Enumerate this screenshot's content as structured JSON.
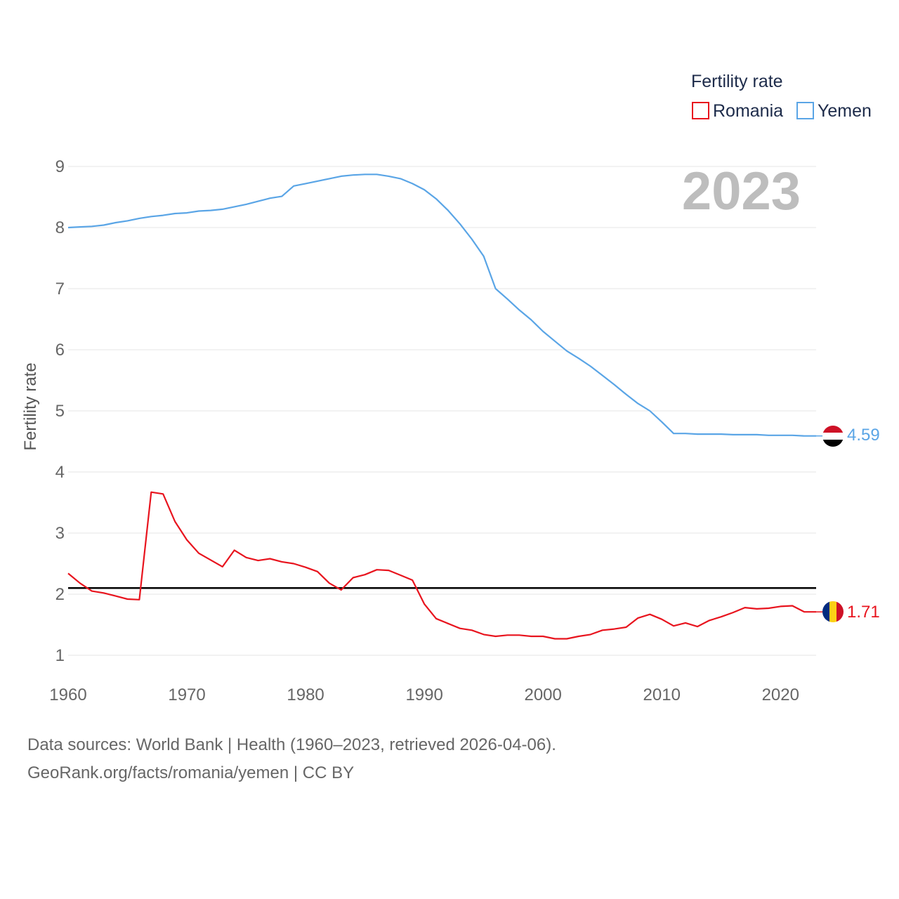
{
  "chart_data": {
    "type": "line",
    "legend_title": "Fertility rate",
    "ylabel": "Fertility rate",
    "xlim": [
      1960,
      2023
    ],
    "ylim": [
      0.5,
      9.2
    ],
    "yticks": [
      1,
      2,
      3,
      4,
      5,
      6,
      7,
      8,
      9
    ],
    "xticks": [
      1960,
      1970,
      1980,
      1990,
      2000,
      2010,
      2020
    ],
    "year_label": "2023",
    "reference_line": 2.1,
    "legend_position": "top-right",
    "series": [
      {
        "name": "Romania",
        "color": "#e8141e",
        "end_label": "1.71",
        "values": [
          2.34,
          2.18,
          2.05,
          2.02,
          1.97,
          1.92,
          1.91,
          3.67,
          3.64,
          3.19,
          2.89,
          2.67,
          2.56,
          2.45,
          2.72,
          2.6,
          2.55,
          2.58,
          2.53,
          2.5,
          2.44,
          2.37,
          2.18,
          2.07,
          2.27,
          2.32,
          2.4,
          2.39,
          2.31,
          2.23,
          1.84,
          1.6,
          1.52,
          1.44,
          1.41,
          1.34,
          1.31,
          1.33,
          1.33,
          1.31,
          1.31,
          1.27,
          1.27,
          1.31,
          1.34,
          1.41,
          1.43,
          1.46,
          1.61,
          1.67,
          1.59,
          1.48,
          1.53,
          1.47,
          1.57,
          1.63,
          1.7,
          1.78,
          1.76,
          1.77,
          1.8,
          1.81,
          1.71,
          1.71
        ]
      },
      {
        "name": "Yemen",
        "color": "#5aa5e6",
        "end_label": "4.59",
        "values": [
          8.0,
          8.01,
          8.02,
          8.04,
          8.08,
          8.11,
          8.15,
          8.18,
          8.2,
          8.23,
          8.24,
          8.27,
          8.28,
          8.3,
          8.34,
          8.38,
          8.43,
          8.48,
          8.51,
          8.68,
          8.72,
          8.76,
          8.8,
          8.84,
          8.86,
          8.87,
          8.87,
          8.84,
          8.8,
          8.72,
          8.62,
          8.47,
          8.28,
          8.06,
          7.81,
          7.53,
          7.0,
          6.83,
          6.65,
          6.49,
          6.3,
          6.14,
          5.98,
          5.86,
          5.73,
          5.58,
          5.43,
          5.27,
          5.12,
          5.0,
          4.82,
          4.63,
          4.63,
          4.62,
          4.62,
          4.62,
          4.61,
          4.61,
          4.61,
          4.6,
          4.6,
          4.6,
          4.59,
          4.59
        ]
      }
    ]
  },
  "flags": {
    "romania": {
      "colors": [
        "#002b7f",
        "#fcd116",
        "#ce1126"
      ],
      "orientation": "vertical"
    },
    "yemen": {
      "colors": [
        "#ce1126",
        "#ffffff",
        "#000000"
      ],
      "orientation": "horizontal"
    }
  },
  "footer": {
    "source_line": "Data sources: World Bank | Health (1960–2023, retrieved 2026-04-06).",
    "credit_line": "GeoRank.org/facts/romania/yemen | CC BY"
  }
}
